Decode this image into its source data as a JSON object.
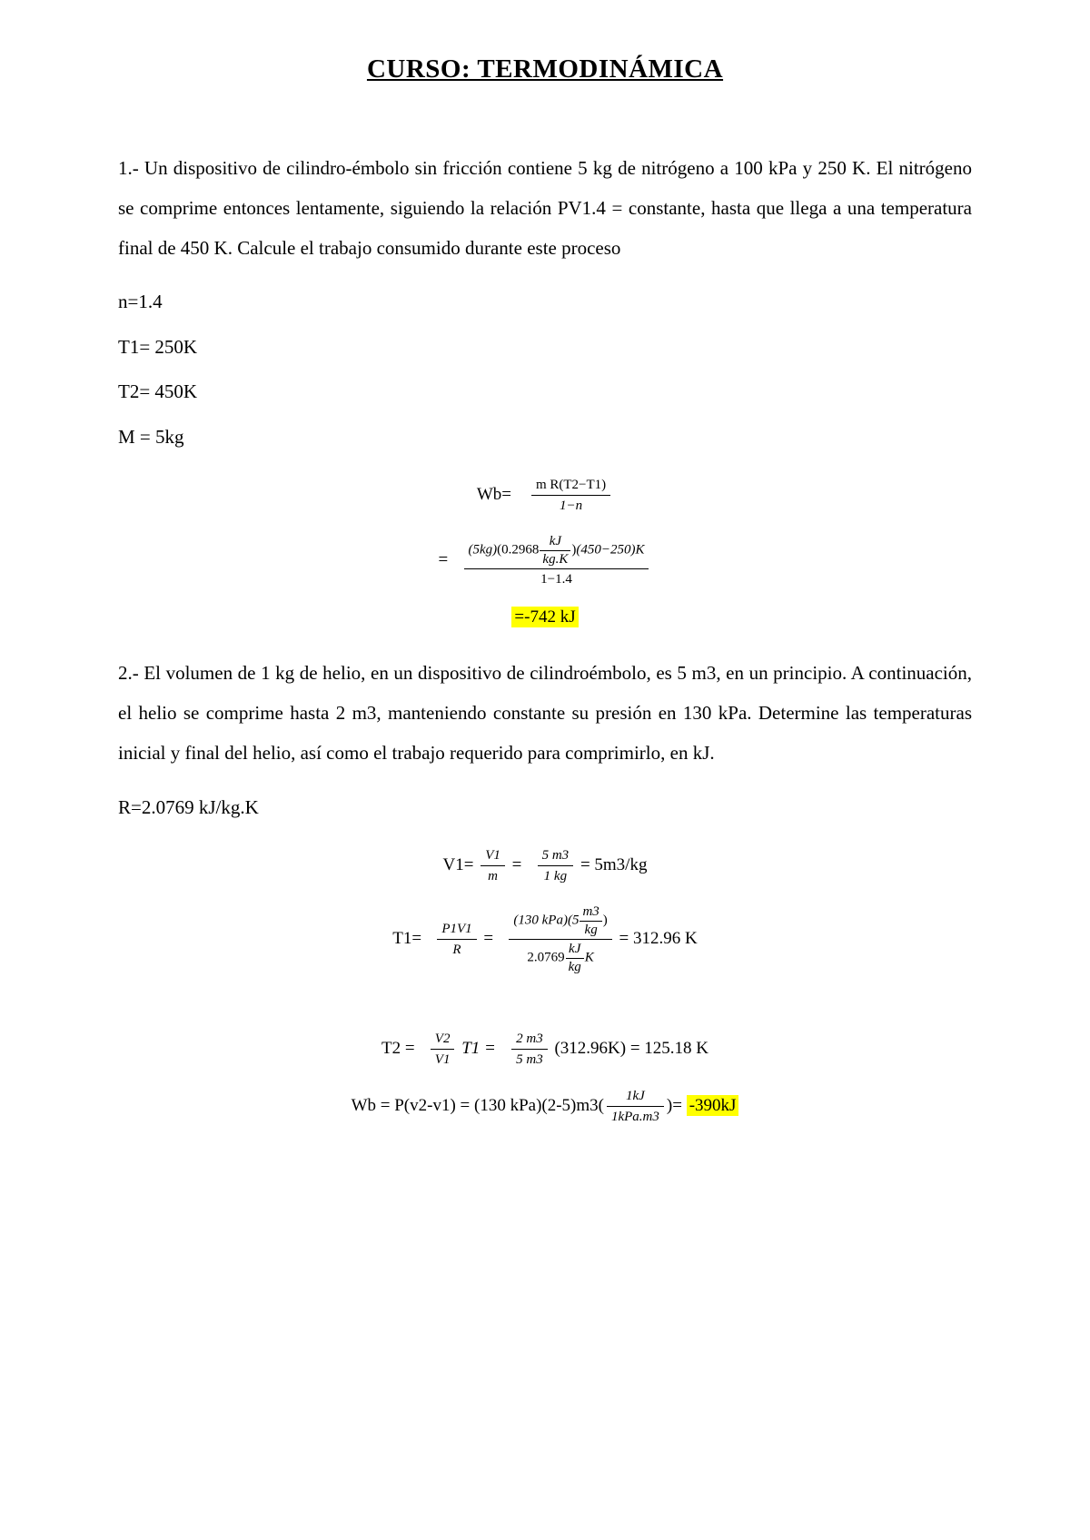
{
  "title": "CURSO: TERMODINÁMICA",
  "colors": {
    "background": "#ffffff",
    "text": "#000000",
    "highlight": "#ffff00"
  },
  "typography": {
    "font_family": "Times New Roman",
    "title_size_pt": 22,
    "body_size_pt": 16,
    "equation_size_pt": 15
  },
  "problem1": {
    "statement": "1.- Un dispositivo de cilindro-émbolo sin fricción contiene 5 kg de nitrógeno a 100 kPa y 250 K. El nitrógeno se comprime entonces lentamente, siguiendo la relación PV1.4 = constante, hasta que llega a una temperatura final de 450 K. Calcule el trabajo consumido durante este proceso",
    "given": {
      "n": "n=1.4",
      "T1": "T1= 250K",
      "T2": "T2= 450K",
      "M": "M = 5kg"
    },
    "equations": {
      "line1_lhs": "Wb=",
      "line1_num": "m R(T2−T1)",
      "line1_den": "1−n",
      "line2_eq": "=",
      "line2_num_left": "(5kg)",
      "line2_num_paren_open": "(",
      "line2_num_coef": "0.2968",
      "line2_num_frac_num": "kJ",
      "line2_num_frac_den": "kg.K",
      "line2_num_paren_close": ")",
      "line2_num_right": "(450−250)K",
      "line2_den": "1−1.4",
      "result": "=-742 kJ"
    }
  },
  "problem2": {
    "statement": "2.- El volumen de 1 kg de helio, en un dispositivo de cilindroémbolo, es 5 m3, en un principio. A continuación, el helio se comprime hasta 2 m3, manteniendo constante su presión en 130 kPa. Determine las temperaturas inicial y final del helio, así como el trabajo requerido para comprimirlo, en kJ.",
    "given": {
      "R": "R=2.0769 kJ/kg.K"
    },
    "equations": {
      "V1": {
        "lhs": "V1=",
        "f1_num": "V1",
        "f1_den": "m",
        "eq1": "=",
        "f2_num": "5 m3",
        "f2_den": "1 kg",
        "rhs": "= 5m3/kg"
      },
      "T1": {
        "lhs": "T1=",
        "f1_num": "P1V1",
        "f1_den": "R",
        "eq1": "=",
        "f2_num_left": "(130 kPa)(5",
        "f2_num_frac_num": "m3",
        "f2_num_frac_den": "kg",
        "f2_num_right": ")",
        "f2_den_left": "2.0769",
        "f2_den_frac_num": "kJ",
        "f2_den_frac_den": "kg",
        "f2_den_right": "K",
        "rhs": "= 312.96 K"
      },
      "T2": {
        "lhs": "T2 =",
        "f1_num": "V2",
        "f1_den": "V1",
        "mid": "T1 =",
        "f2_num": "2 m3",
        "f2_den": "5 m3",
        "paren": "(312.96K)",
        "rhs": "= 125.18 K"
      },
      "Wb": {
        "lhs": "Wb = P(v2-v1) = (130 kPa)(2-5)m3(",
        "f_num": "1kJ",
        "f_den": "1kPa.m3",
        "mid": ")=",
        "result": "-390kJ"
      }
    }
  }
}
